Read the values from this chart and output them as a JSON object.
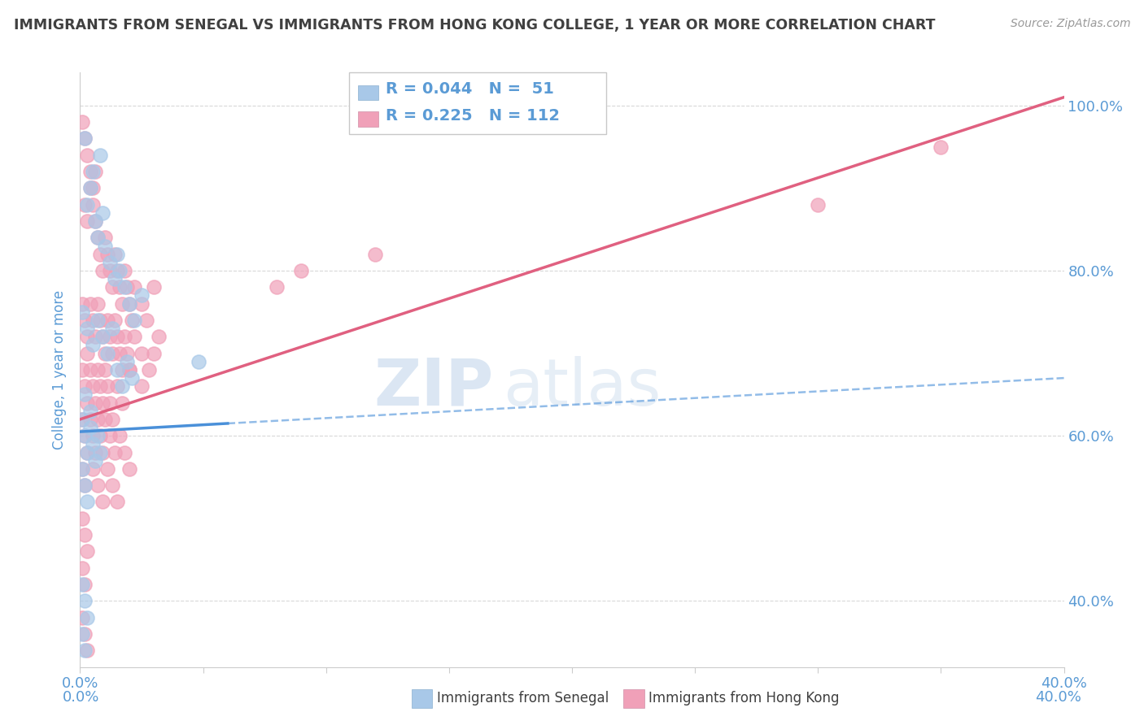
{
  "title": "IMMIGRANTS FROM SENEGAL VS IMMIGRANTS FROM HONG KONG COLLEGE, 1 YEAR OR MORE CORRELATION CHART",
  "source": "Source: ZipAtlas.com",
  "ylabel": "College, 1 year or more",
  "xlim": [
    0.0,
    0.4
  ],
  "ylim": [
    0.32,
    1.04
  ],
  "ytick_positions": [
    0.4,
    0.6,
    0.8,
    1.0
  ],
  "ytick_labels": [
    "40.0%",
    "60.0%",
    "80.0%",
    "100.0%"
  ],
  "color_senegal": "#a8c8e8",
  "color_hongkong": "#f0a0b8",
  "trendline_senegal_solid": [
    [
      0.0,
      0.605
    ],
    [
      0.06,
      0.615
    ]
  ],
  "trendline_senegal_dashed": [
    [
      0.06,
      0.615
    ],
    [
      0.4,
      0.67
    ]
  ],
  "trendline_hongkong": [
    [
      0.0,
      0.62
    ],
    [
      0.4,
      1.01
    ]
  ],
  "trendline_senegal_color": "#4a90d9",
  "trendline_hongkong_color": "#e06080",
  "watermark_zip": "ZIP",
  "watermark_atlas": "atlas",
  "background_color": "#ffffff",
  "grid_color": "#d8d8d8",
  "title_color": "#404040",
  "axis_label_color": "#5b9bd5",
  "senegal_points": [
    [
      0.002,
      0.96
    ],
    [
      0.005,
      0.92
    ],
    [
      0.008,
      0.94
    ],
    [
      0.004,
      0.9
    ],
    [
      0.003,
      0.88
    ],
    [
      0.006,
      0.86
    ],
    [
      0.007,
      0.84
    ],
    [
      0.009,
      0.87
    ],
    [
      0.01,
      0.83
    ],
    [
      0.012,
      0.81
    ],
    [
      0.014,
      0.79
    ],
    [
      0.015,
      0.82
    ],
    [
      0.016,
      0.8
    ],
    [
      0.018,
      0.78
    ],
    [
      0.02,
      0.76
    ],
    [
      0.022,
      0.74
    ],
    [
      0.025,
      0.77
    ],
    [
      0.001,
      0.75
    ],
    [
      0.003,
      0.73
    ],
    [
      0.005,
      0.71
    ],
    [
      0.007,
      0.74
    ],
    [
      0.009,
      0.72
    ],
    [
      0.011,
      0.7
    ],
    [
      0.013,
      0.73
    ],
    [
      0.015,
      0.68
    ],
    [
      0.017,
      0.66
    ],
    [
      0.019,
      0.69
    ],
    [
      0.021,
      0.67
    ],
    [
      0.002,
      0.65
    ],
    [
      0.004,
      0.63
    ],
    [
      0.048,
      0.69
    ],
    [
      0.001,
      0.62
    ],
    [
      0.002,
      0.6
    ],
    [
      0.003,
      0.58
    ],
    [
      0.004,
      0.61
    ],
    [
      0.005,
      0.59
    ],
    [
      0.006,
      0.57
    ],
    [
      0.007,
      0.6
    ],
    [
      0.008,
      0.58
    ],
    [
      0.001,
      0.56
    ],
    [
      0.002,
      0.54
    ],
    [
      0.003,
      0.52
    ],
    [
      0.001,
      0.42
    ],
    [
      0.002,
      0.4
    ],
    [
      0.003,
      0.38
    ],
    [
      0.001,
      0.36
    ],
    [
      0.002,
      0.34
    ]
  ],
  "hongkong_points": [
    [
      0.001,
      0.98
    ],
    [
      0.002,
      0.96
    ],
    [
      0.003,
      0.94
    ],
    [
      0.004,
      0.92
    ],
    [
      0.005,
      0.9
    ],
    [
      0.006,
      0.92
    ],
    [
      0.002,
      0.88
    ],
    [
      0.003,
      0.86
    ],
    [
      0.004,
      0.9
    ],
    [
      0.005,
      0.88
    ],
    [
      0.006,
      0.86
    ],
    [
      0.007,
      0.84
    ],
    [
      0.008,
      0.82
    ],
    [
      0.009,
      0.8
    ],
    [
      0.01,
      0.84
    ],
    [
      0.011,
      0.82
    ],
    [
      0.012,
      0.8
    ],
    [
      0.013,
      0.78
    ],
    [
      0.014,
      0.82
    ],
    [
      0.015,
      0.8
    ],
    [
      0.016,
      0.78
    ],
    [
      0.017,
      0.76
    ],
    [
      0.018,
      0.8
    ],
    [
      0.019,
      0.78
    ],
    [
      0.02,
      0.76
    ],
    [
      0.021,
      0.74
    ],
    [
      0.022,
      0.78
    ],
    [
      0.025,
      0.76
    ],
    [
      0.027,
      0.74
    ],
    [
      0.03,
      0.78
    ],
    [
      0.001,
      0.76
    ],
    [
      0.002,
      0.74
    ],
    [
      0.003,
      0.72
    ],
    [
      0.004,
      0.76
    ],
    [
      0.005,
      0.74
    ],
    [
      0.006,
      0.72
    ],
    [
      0.007,
      0.76
    ],
    [
      0.008,
      0.74
    ],
    [
      0.009,
      0.72
    ],
    [
      0.01,
      0.7
    ],
    [
      0.011,
      0.74
    ],
    [
      0.012,
      0.72
    ],
    [
      0.013,
      0.7
    ],
    [
      0.014,
      0.74
    ],
    [
      0.015,
      0.72
    ],
    [
      0.016,
      0.7
    ],
    [
      0.017,
      0.68
    ],
    [
      0.018,
      0.72
    ],
    [
      0.019,
      0.7
    ],
    [
      0.02,
      0.68
    ],
    [
      0.022,
      0.72
    ],
    [
      0.025,
      0.7
    ],
    [
      0.028,
      0.68
    ],
    [
      0.032,
      0.72
    ],
    [
      0.001,
      0.68
    ],
    [
      0.002,
      0.66
    ],
    [
      0.003,
      0.7
    ],
    [
      0.004,
      0.68
    ],
    [
      0.005,
      0.66
    ],
    [
      0.006,
      0.64
    ],
    [
      0.007,
      0.68
    ],
    [
      0.008,
      0.66
    ],
    [
      0.009,
      0.64
    ],
    [
      0.01,
      0.68
    ],
    [
      0.011,
      0.66
    ],
    [
      0.012,
      0.64
    ],
    [
      0.013,
      0.62
    ],
    [
      0.015,
      0.66
    ],
    [
      0.017,
      0.64
    ],
    [
      0.02,
      0.68
    ],
    [
      0.025,
      0.66
    ],
    [
      0.03,
      0.7
    ],
    [
      0.001,
      0.62
    ],
    [
      0.002,
      0.6
    ],
    [
      0.003,
      0.64
    ],
    [
      0.004,
      0.62
    ],
    [
      0.005,
      0.6
    ],
    [
      0.006,
      0.58
    ],
    [
      0.007,
      0.62
    ],
    [
      0.008,
      0.6
    ],
    [
      0.009,
      0.58
    ],
    [
      0.01,
      0.62
    ],
    [
      0.012,
      0.6
    ],
    [
      0.014,
      0.58
    ],
    [
      0.016,
      0.6
    ],
    [
      0.018,
      0.58
    ],
    [
      0.02,
      0.56
    ],
    [
      0.001,
      0.56
    ],
    [
      0.002,
      0.54
    ],
    [
      0.003,
      0.58
    ],
    [
      0.005,
      0.56
    ],
    [
      0.007,
      0.54
    ],
    [
      0.009,
      0.52
    ],
    [
      0.011,
      0.56
    ],
    [
      0.013,
      0.54
    ],
    [
      0.015,
      0.52
    ],
    [
      0.001,
      0.5
    ],
    [
      0.002,
      0.48
    ],
    [
      0.003,
      0.46
    ],
    [
      0.001,
      0.44
    ],
    [
      0.002,
      0.42
    ],
    [
      0.001,
      0.38
    ],
    [
      0.002,
      0.36
    ],
    [
      0.003,
      0.34
    ],
    [
      0.3,
      0.88
    ],
    [
      0.35,
      0.95
    ],
    [
      0.08,
      0.78
    ],
    [
      0.09,
      0.8
    ],
    [
      0.12,
      0.82
    ]
  ]
}
